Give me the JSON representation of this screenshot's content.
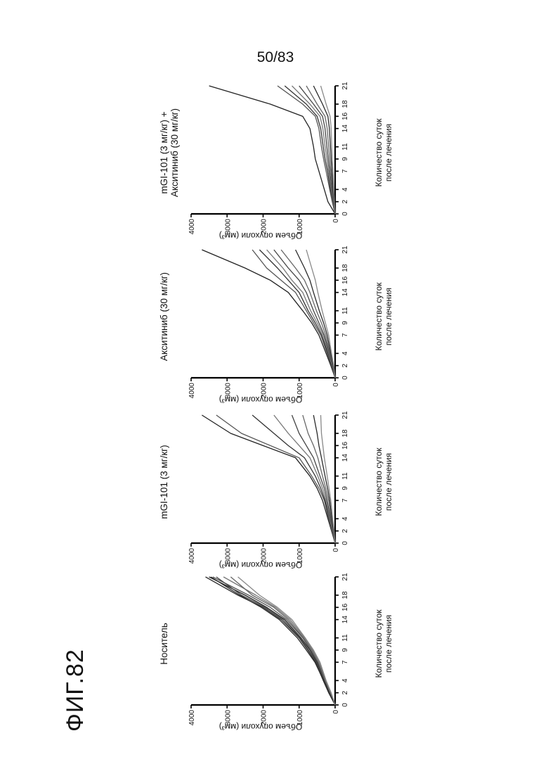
{
  "page": {
    "page_number": "50/83",
    "figure_label": "ФИГ.82"
  },
  "chart_data": [
    {
      "type": "line",
      "title": "Носитель",
      "xlabel": "Количество суток\nпосле лечения",
      "ylabel": "Объем опухоли (мм³)",
      "x": [
        0,
        2,
        4,
        7,
        9,
        11,
        14,
        16,
        18,
        21
      ],
      "xticks": [
        "0",
        "2",
        "4",
        "7",
        "9",
        "11",
        "14",
        "16",
        "18",
        "21"
      ],
      "yticks": [
        "0",
        "1000",
        "2000",
        "3000",
        "4000"
      ],
      "ylim": [
        0,
        4000
      ],
      "series": [
        {
          "values": [
            0,
            150,
            300,
            500,
            700,
            950,
            1400,
            1900,
            2500,
            3500
          ]
        },
        {
          "values": [
            0,
            120,
            280,
            480,
            680,
            900,
            1350,
            1800,
            2400,
            3400
          ]
        },
        {
          "values": [
            0,
            180,
            330,
            540,
            760,
            1000,
            1500,
            2000,
            2700,
            3600
          ]
        },
        {
          "values": [
            0,
            140,
            260,
            430,
            620,
            850,
            1250,
            1650,
            2200,
            3100
          ]
        },
        {
          "values": [
            0,
            160,
            310,
            520,
            740,
            980,
            1450,
            1950,
            2600,
            3300
          ]
        },
        {
          "values": [
            0,
            130,
            270,
            460,
            650,
            880,
            1300,
            1700,
            2300,
            2900
          ]
        },
        {
          "values": [
            0,
            170,
            320,
            560,
            800,
            1050,
            1550,
            2050,
            2650,
            3450
          ]
        },
        {
          "values": [
            0,
            110,
            250,
            420,
            600,
            830,
            1200,
            1600,
            2100,
            2700
          ]
        }
      ]
    },
    {
      "type": "line",
      "title": "mGI-101 (3 мг/кг)",
      "xlabel": "Количество суток\nпосле лечения",
      "ylabel": "Объем опухоли (мм³)",
      "x": [
        0,
        2,
        4,
        7,
        9,
        11,
        14,
        16,
        18,
        21
      ],
      "xticks": [
        "0",
        "2",
        "4",
        "7",
        "9",
        "11",
        "14",
        "16",
        "18",
        "21"
      ],
      "yticks": [
        "0",
        "1000",
        "2000",
        "3000",
        "4000"
      ],
      "ylim": [
        0,
        4000
      ],
      "series": [
        {
          "values": [
            0,
            100,
            200,
            350,
            500,
            700,
            1100,
            2000,
            2900,
            3700
          ]
        },
        {
          "values": [
            0,
            90,
            180,
            300,
            450,
            650,
            1000,
            1800,
            2600,
            3300
          ]
        },
        {
          "values": [
            0,
            80,
            160,
            280,
            400,
            550,
            850,
            1300,
            1700,
            2300
          ]
        },
        {
          "values": [
            0,
            70,
            150,
            250,
            350,
            480,
            700,
            1000,
            1300,
            1700
          ]
        },
        {
          "values": [
            0,
            60,
            130,
            220,
            300,
            420,
            600,
            800,
            1000,
            1200
          ]
        },
        {
          "values": [
            0,
            50,
            110,
            180,
            260,
            350,
            480,
            600,
            750,
            900
          ]
        },
        {
          "values": [
            0,
            40,
            90,
            150,
            210,
            280,
            380,
            450,
            500,
            600
          ]
        },
        {
          "values": [
            0,
            30,
            70,
            120,
            170,
            220,
            300,
            340,
            380,
            400
          ]
        }
      ]
    },
    {
      "type": "line",
      "title": "Акситиниб (30 мг/кг)",
      "xlabel": "Количество суток\nпосле лечения",
      "ylabel": "Объем опухоли (мм³)",
      "x": [
        0,
        2,
        4,
        7,
        9,
        11,
        14,
        16,
        18,
        21
      ],
      "xticks": [
        "0",
        "2",
        "4",
        "7",
        "9",
        "11",
        "14",
        "16",
        "18",
        "21"
      ],
      "yticks": [
        "0",
        "1000",
        "2000",
        "3000",
        "4000"
      ],
      "ylim": [
        0,
        4000
      ],
      "series": [
        {
          "values": [
            0,
            120,
            250,
            450,
            650,
            900,
            1300,
            1800,
            2500,
            3700
          ]
        },
        {
          "values": [
            0,
            100,
            220,
            400,
            600,
            800,
            1100,
            1500,
            1900,
            2300
          ]
        },
        {
          "values": [
            0,
            90,
            200,
            370,
            550,
            750,
            1000,
            1300,
            1600,
            2100
          ]
        },
        {
          "values": [
            0,
            80,
            180,
            330,
            500,
            680,
            900,
            1200,
            1450,
            1900
          ]
        },
        {
          "values": [
            0,
            70,
            160,
            300,
            450,
            600,
            800,
            1000,
            1300,
            1700
          ]
        },
        {
          "values": [
            0,
            60,
            140,
            260,
            380,
            520,
            700,
            850,
            1100,
            1500
          ]
        },
        {
          "values": [
            0,
            50,
            120,
            220,
            320,
            440,
            600,
            700,
            850,
            1100
          ]
        },
        {
          "values": [
            0,
            40,
            100,
            180,
            270,
            360,
            480,
            550,
            650,
            800
          ]
        }
      ]
    },
    {
      "type": "line",
      "title": "mGI-101 (3 мг/кг) +\nАкситиниб (30 мг/кг)",
      "xlabel": "Количество суток\nпосле лечения",
      "ylabel": "Объем опухоли (мм³)",
      "x": [
        0,
        2,
        4,
        7,
        9,
        11,
        14,
        16,
        18,
        21
      ],
      "xticks": [
        "0",
        "2",
        "4",
        "7",
        "9",
        "11",
        "14",
        "16",
        "18",
        "21"
      ],
      "yticks": [
        "0",
        "1000",
        "2000",
        "3000",
        "4000"
      ],
      "ylim": [
        0,
        4000
      ],
      "series": [
        {
          "values": [
            0,
            200,
            300,
            450,
            550,
            600,
            700,
            900,
            1800,
            3500
          ]
        },
        {
          "values": [
            0,
            80,
            150,
            250,
            320,
            380,
            450,
            550,
            900,
            1600
          ]
        },
        {
          "values": [
            0,
            70,
            130,
            210,
            280,
            330,
            400,
            500,
            800,
            1400
          ]
        },
        {
          "values": [
            0,
            60,
            110,
            180,
            230,
            280,
            340,
            420,
            700,
            1200
          ]
        },
        {
          "values": [
            0,
            50,
            90,
            150,
            190,
            230,
            280,
            350,
            600,
            1000
          ]
        },
        {
          "values": [
            0,
            40,
            70,
            120,
            150,
            180,
            220,
            280,
            500,
            800
          ]
        },
        {
          "values": [
            0,
            30,
            55,
            90,
            110,
            130,
            160,
            200,
            350,
            600
          ]
        },
        {
          "values": [
            0,
            20,
            40,
            60,
            80,
            95,
            110,
            140,
            250,
            400
          ]
        }
      ]
    }
  ]
}
